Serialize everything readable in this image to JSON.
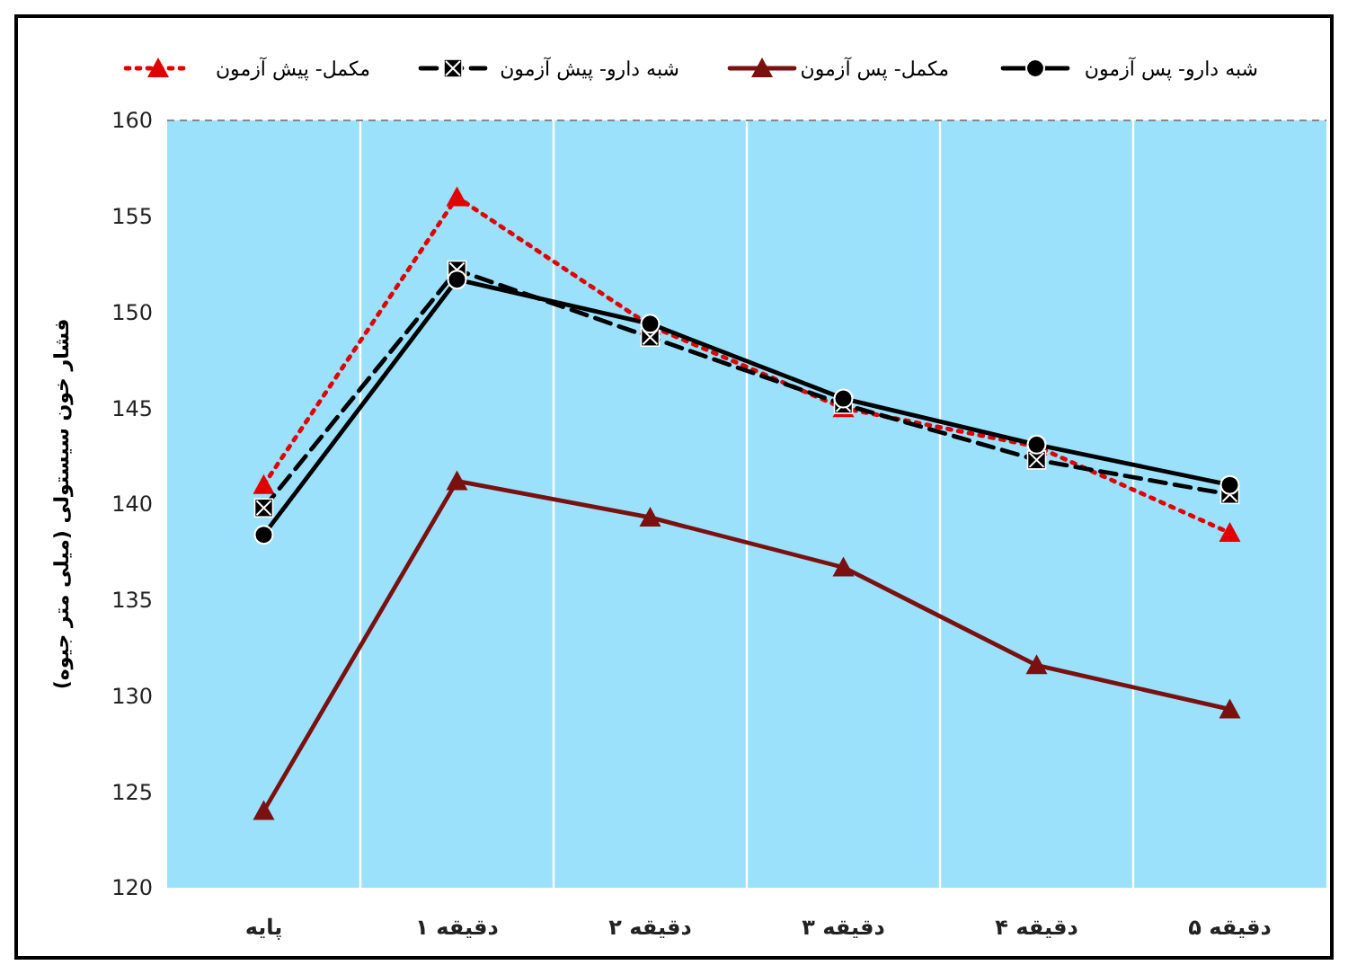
{
  "chart_data": {
    "type": "line",
    "ylabel": "فشار خون سیستولی (میلی متر جیوه)",
    "categories": [
      "پایه",
      "دقیقه ۱",
      "دقیقه ۲",
      "دقیقه ۳",
      "دقیقه ۴",
      "دقیقه ۵"
    ],
    "series": [
      {
        "name": "شبه دارو- پس آزمون",
        "color": "#000000",
        "marker": "circle",
        "line_style": "solid",
        "values": [
          138.4,
          151.7,
          149.4,
          145.5,
          143.1,
          141
        ]
      },
      {
        "name": "مکمل- پس آزمون",
        "color": "#7a1010",
        "marker": "triangle",
        "line_style": "solid",
        "values": [
          124,
          141.2,
          139.3,
          136.7,
          131.6,
          129.3
        ]
      },
      {
        "name": "شبه دارو- پیش آزمون",
        "color": "#000000",
        "marker": "square",
        "line_style": "dashed",
        "values": [
          139.8,
          152.2,
          148.7,
          145.2,
          142.3,
          140.5
        ]
      },
      {
        "name": "مکمل- پیش آزمون",
        "color": "#e00000",
        "marker": "triangle",
        "line_style": "dotted",
        "values": [
          141,
          156,
          149.3,
          145,
          143,
          138.5
        ]
      }
    ],
    "ylim": [
      120,
      160
    ],
    "yticks": [
      120,
      125,
      130,
      135,
      140,
      145,
      150,
      155,
      160
    ],
    "grid": "x",
    "legend": "top"
  }
}
